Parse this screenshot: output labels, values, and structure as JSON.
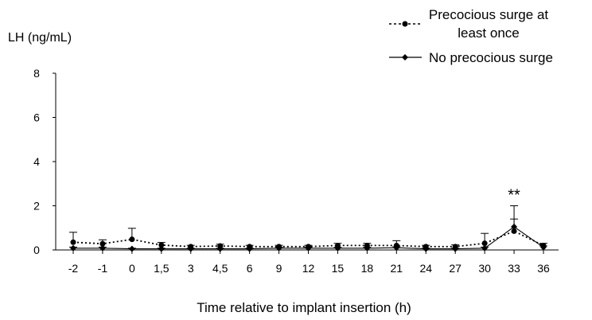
{
  "chart_data": {
    "type": "line",
    "ylabel": "LH (ng/mL)",
    "xlabel": "Time relative to implant insertion (h)",
    "categories": [
      "-2",
      "-1",
      "0",
      "1,5",
      "3",
      "4,5",
      "6",
      "9",
      "12",
      "15",
      "18",
      "21",
      "24",
      "27",
      "30",
      "33",
      "36"
    ],
    "ylim": [
      0,
      8
    ],
    "yticks": [
      "0",
      "2",
      "4",
      "6",
      "8"
    ],
    "grid": false,
    "legend_position": "top-right",
    "series": [
      {
        "name": "Precocious surge at least once",
        "style": "dotted",
        "marker": "circle",
        "color": "#000000",
        "values": [
          0.35,
          0.28,
          0.48,
          0.22,
          0.15,
          0.18,
          0.15,
          0.15,
          0.15,
          0.2,
          0.2,
          0.2,
          0.15,
          0.15,
          0.3,
          0.85,
          0.2
        ],
        "errors": [
          0.45,
          0.18,
          0.5,
          0.12,
          0.06,
          0.08,
          0.06,
          0.06,
          0.06,
          0.1,
          0.1,
          0.22,
          0.06,
          0.08,
          0.45,
          0.55,
          0.1
        ]
      },
      {
        "name": "No precocious surge",
        "style": "solid",
        "marker": "diamond",
        "color": "#000000",
        "values": [
          0.08,
          0.08,
          0.05,
          0.05,
          0.05,
          0.05,
          0.05,
          0.08,
          0.08,
          0.08,
          0.08,
          0.1,
          0.05,
          0.05,
          0.08,
          1.05,
          0.12
        ],
        "errors": [
          0.05,
          0.05,
          0.03,
          0.03,
          0.03,
          0.03,
          0.03,
          0.04,
          0.04,
          0.04,
          0.04,
          0.05,
          0.03,
          0.03,
          0.05,
          0.95,
          0.06
        ]
      }
    ],
    "annotations": [
      {
        "text": "**",
        "category": "33",
        "value": 2.1
      }
    ]
  }
}
